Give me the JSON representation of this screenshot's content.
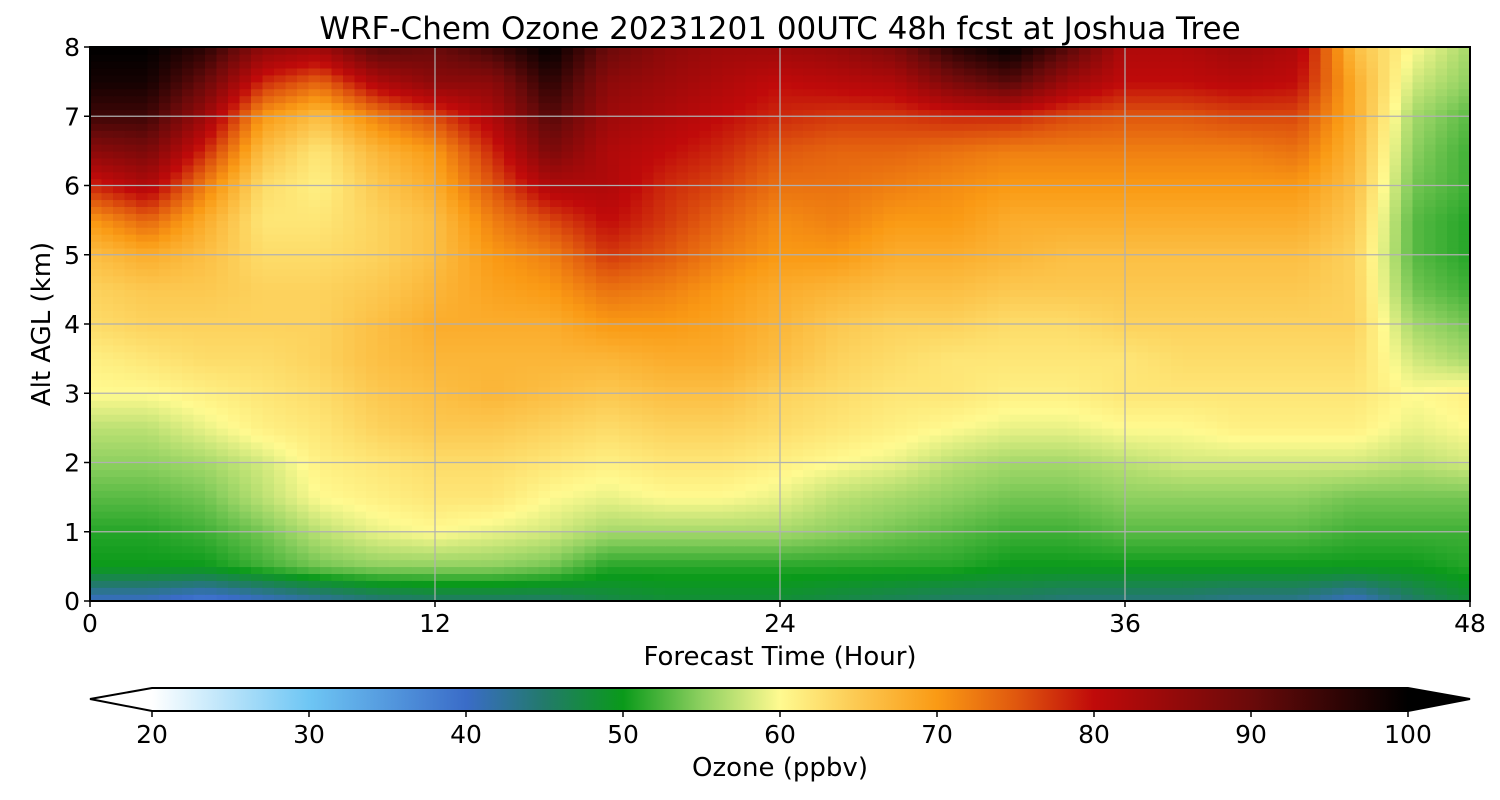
{
  "chart_data": {
    "type": "heatmap",
    "title": "WRF-Chem Ozone  20231201 00UTC 48h fcst at Joshua Tree",
    "xlabel": "Forecast Time (Hour)",
    "ylabel": "Alt AGL (km)",
    "xlim": [
      0,
      48
    ],
    "ylim": [
      0,
      8
    ],
    "x_ticks": [
      "0",
      "12",
      "24",
      "36",
      "48"
    ],
    "y_ticks": [
      "0",
      "1",
      "2",
      "3",
      "4",
      "5",
      "6",
      "7",
      "8"
    ],
    "grid": true,
    "colorbar": {
      "label": "Ozone  (ppbv)",
      "range": [
        20,
        100
      ],
      "ticks": [
        "20",
        "30",
        "40",
        "50",
        "60",
        "70",
        "80",
        "90",
        "100"
      ],
      "extend": "both",
      "stops": [
        {
          "value": 20,
          "color": "#ffffff"
        },
        {
          "value": 30,
          "color": "#6ec6f4"
        },
        {
          "value": 40,
          "color": "#3a6cc8"
        },
        {
          "value": 45,
          "color": "#227a6a"
        },
        {
          "value": 50,
          "color": "#0a9a1a"
        },
        {
          "value": 55,
          "color": "#8ed060"
        },
        {
          "value": 60,
          "color": "#fffa90"
        },
        {
          "value": 65,
          "color": "#fcc850"
        },
        {
          "value": 70,
          "color": "#fa9a14"
        },
        {
          "value": 75,
          "color": "#e0580e"
        },
        {
          "value": 80,
          "color": "#c00a0a"
        },
        {
          "value": 90,
          "color": "#6a0a0a"
        },
        {
          "value": 100,
          "color": "#000000"
        }
      ],
      "under_color": "#ffffff",
      "over_color": "#000000"
    },
    "x": [
      0,
      2,
      4,
      6,
      8,
      10,
      12,
      14,
      16,
      18,
      20,
      22,
      24,
      26,
      28,
      30,
      32,
      34,
      36,
      38,
      40,
      42,
      44,
      46,
      48
    ],
    "y": [
      0,
      0.5,
      1,
      1.5,
      2,
      2.5,
      3,
      3.5,
      4,
      4.5,
      5,
      5.5,
      6,
      6.5,
      7,
      7.5,
      8
    ],
    "z": [
      [
        40,
        40,
        38,
        40,
        42,
        44,
        45,
        45,
        45,
        47,
        48,
        48,
        48,
        47,
        46,
        45,
        45,
        44,
        44,
        44,
        43,
        43,
        40,
        45,
        48
      ],
      [
        50,
        50,
        50,
        52,
        54,
        55,
        55,
        55,
        54,
        51,
        51,
        51,
        51,
        51,
        51,
        51,
        50,
        50,
        50,
        50,
        50,
        50,
        50,
        50,
        51
      ],
      [
        51,
        51,
        52,
        54,
        57,
        59,
        60,
        59,
        58,
        56,
        56,
        56,
        56,
        55,
        54,
        53,
        52,
        52,
        53,
        53,
        53,
        53,
        52,
        52,
        52
      ],
      [
        53,
        53,
        54,
        57,
        60,
        61,
        62,
        62,
        60,
        59,
        60,
        60,
        59,
        57,
        56,
        55,
        54,
        54,
        55,
        55,
        55,
        55,
        54,
        54,
        54
      ],
      [
        55,
        55,
        56,
        58,
        61,
        62,
        63,
        63,
        62,
        61,
        62,
        62,
        61,
        60,
        59,
        57,
        56,
        56,
        57,
        58,
        58,
        58,
        58,
        57,
        58
      ],
      [
        57,
        57,
        59,
        61,
        62,
        64,
        65,
        65,
        64,
        63,
        64,
        64,
        63,
        62,
        61,
        60,
        59,
        59,
        60,
        60,
        61,
        61,
        61,
        59,
        60
      ],
      [
        60,
        60,
        61,
        62,
        63,
        65,
        66,
        67,
        66,
        65,
        66,
        66,
        64,
        63,
        62,
        62,
        61,
        61,
        62,
        62,
        62,
        62,
        62,
        60,
        61
      ],
      [
        61,
        62,
        63,
        63,
        64,
        66,
        67,
        67,
        67,
        67,
        68,
        68,
        66,
        64,
        63,
        62,
        62,
        62,
        62,
        63,
        63,
        63,
        63,
        58,
        56
      ],
      [
        63,
        64,
        64,
        64,
        64,
        66,
        68,
        68,
        68,
        70,
        70,
        69,
        67,
        65,
        64,
        64,
        63,
        63,
        64,
        64,
        64,
        64,
        64,
        56,
        54
      ],
      [
        64,
        65,
        65,
        64,
        64,
        65,
        67,
        69,
        70,
        73,
        72,
        70,
        68,
        67,
        66,
        66,
        65,
        65,
        65,
        65,
        65,
        65,
        64,
        54,
        52
      ],
      [
        66,
        68,
        66,
        63,
        63,
        64,
        66,
        70,
        72,
        77,
        75,
        72,
        70,
        70,
        68,
        68,
        67,
        66,
        66,
        66,
        66,
        66,
        64,
        53,
        51
      ],
      [
        70,
        74,
        68,
        62,
        62,
        64,
        66,
        72,
        76,
        80,
        77,
        74,
        71,
        72,
        70,
        70,
        68,
        68,
        68,
        68,
        68,
        68,
        65,
        53,
        51
      ],
      [
        78,
        82,
        72,
        63,
        61,
        65,
        68,
        75,
        82,
        82,
        78,
        76,
        73,
        73,
        72,
        71,
        70,
        70,
        70,
        70,
        70,
        70,
        66,
        54,
        52
      ],
      [
        86,
        88,
        78,
        66,
        62,
        67,
        70,
        78,
        88,
        82,
        80,
        78,
        75,
        74,
        74,
        73,
        72,
        72,
        72,
        72,
        72,
        73,
        67,
        55,
        52
      ],
      [
        94,
        94,
        84,
        70,
        66,
        72,
        76,
        82,
        92,
        84,
        82,
        80,
        78,
        77,
        77,
        78,
        78,
        76,
        75,
        75,
        76,
        76,
        68,
        56,
        53
      ],
      [
        98,
        98,
        90,
        78,
        74,
        82,
        86,
        86,
        96,
        86,
        84,
        82,
        80,
        81,
        82,
        88,
        92,
        84,
        80,
        80,
        81,
        80,
        68,
        58,
        55
      ],
      [
        100,
        100,
        96,
        86,
        84,
        92,
        90,
        94,
        100,
        90,
        86,
        84,
        84,
        85,
        88,
        96,
        100,
        92,
        82,
        82,
        84,
        82,
        66,
        60,
        56
      ]
    ]
  }
}
